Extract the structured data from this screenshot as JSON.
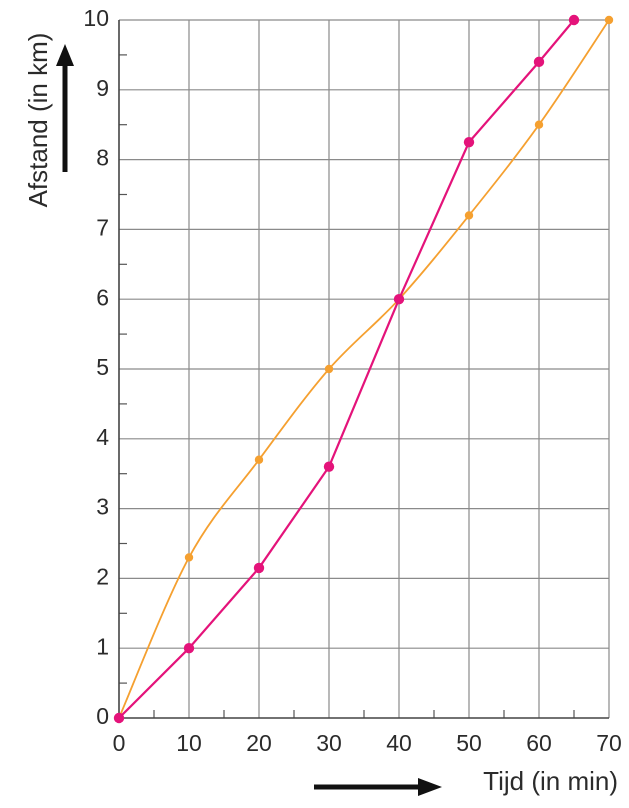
{
  "chart_data": {
    "type": "line",
    "title": "",
    "xlabel": "Tijd (in min)",
    "ylabel": "Afstand (in km)",
    "xlim": [
      0,
      70
    ],
    "ylim": [
      0,
      10
    ],
    "x_ticks": [
      "0",
      "10",
      "20",
      "30",
      "40",
      "50",
      "60",
      "70"
    ],
    "y_ticks": [
      "0",
      "1",
      "2",
      "3",
      "4",
      "5",
      "6",
      "7",
      "8",
      "9",
      "10"
    ],
    "grid": true,
    "minor_ticks": {
      "x_step": 5,
      "y_step": 0.5
    },
    "series": [
      {
        "color": "#f5a030",
        "smooth": true,
        "points": [
          [
            0,
            0
          ],
          [
            10,
            2.3
          ],
          [
            20,
            3.7
          ],
          [
            30,
            5.0
          ],
          [
            40,
            6.0
          ],
          [
            50,
            7.2
          ],
          [
            60,
            8.5
          ],
          [
            70,
            10.0
          ]
        ]
      },
      {
        "color": "#e4137a",
        "smooth": false,
        "points": [
          [
            0,
            0
          ],
          [
            10,
            1.0
          ],
          [
            20,
            2.15
          ],
          [
            30,
            3.6
          ],
          [
            40,
            6.0
          ],
          [
            50,
            8.25
          ],
          [
            60,
            9.4
          ],
          [
            65,
            10.0
          ]
        ]
      }
    ]
  }
}
